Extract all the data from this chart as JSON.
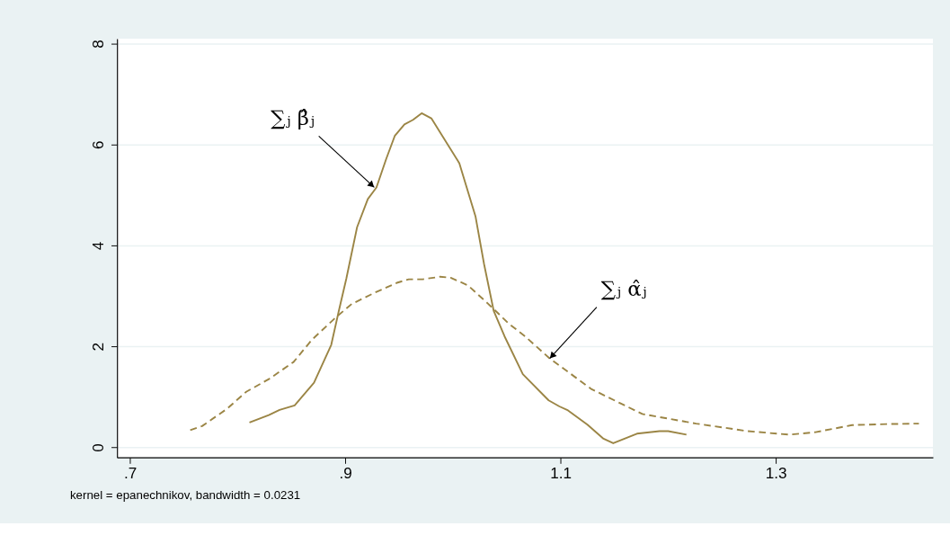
{
  "chart_data": {
    "type": "line",
    "xlim": [
      0.688,
      1.446
    ],
    "ylim": [
      -0.2,
      8.1
    ],
    "xticks": [
      {
        "value": 0.7,
        "label": ".7"
      },
      {
        "value": 0.9,
        "label": ".9"
      },
      1.1,
      1.3
    ],
    "yticks": [
      0,
      2,
      4,
      6,
      8
    ],
    "grid": "y",
    "marker": "none",
    "series": [
      {
        "color": "#9b8545",
        "line_style": "solid",
        "x": [
          0.811,
          0.829,
          0.839,
          0.853,
          0.871,
          0.887,
          0.894,
          0.901,
          0.911,
          0.921,
          0.929,
          0.938,
          0.946,
          0.955,
          0.963,
          0.971,
          0.98,
          0.99,
          1.006,
          1.021,
          1.029,
          1.038,
          1.048,
          1.065,
          1.089,
          1.099,
          1.107,
          1.125,
          1.14,
          1.149,
          1.171,
          1.192,
          1.2,
          1.217
        ],
        "values": [
          0.49,
          0.64,
          0.74,
          0.83,
          1.28,
          2.03,
          2.7,
          3.34,
          4.36,
          4.92,
          5.15,
          5.71,
          6.17,
          6.4,
          6.49,
          6.62,
          6.52,
          6.18,
          5.63,
          4.58,
          3.63,
          2.7,
          2.2,
          1.45,
          0.93,
          0.81,
          0.73,
          0.45,
          0.17,
          0.08,
          0.27,
          0.32,
          0.32,
          0.25
        ]
      },
      {
        "color": "#9b8545",
        "line_style": "dashed",
        "x": [
          0.756,
          0.767,
          0.79,
          0.808,
          0.829,
          0.852,
          0.869,
          0.89,
          0.906,
          0.927,
          0.948,
          0.959,
          0.972,
          0.988,
          0.998,
          1.014,
          1.033,
          1.052,
          1.067,
          1.09,
          1.129,
          1.176,
          1.226,
          1.274,
          1.313,
          1.337,
          1.371,
          1.403,
          1.433
        ],
        "values": [
          0.34,
          0.42,
          0.76,
          1.1,
          1.35,
          1.69,
          2.13,
          2.55,
          2.84,
          3.06,
          3.26,
          3.33,
          3.33,
          3.38,
          3.36,
          3.21,
          2.84,
          2.45,
          2.2,
          1.76,
          1.15,
          0.66,
          0.47,
          0.32,
          0.25,
          0.3,
          0.44,
          0.46,
          0.47
        ]
      }
    ],
    "annotations": [
      {
        "text": "∑ⱼ β̂ⱼ",
        "x": 0.927,
        "y": 5.15
      },
      {
        "text": "∑ⱼ α̂ⱼ",
        "x": 1.09,
        "y": 1.76
      },
      "kernel = epanechnikov, bandwidth = 0.0231"
    ]
  }
}
